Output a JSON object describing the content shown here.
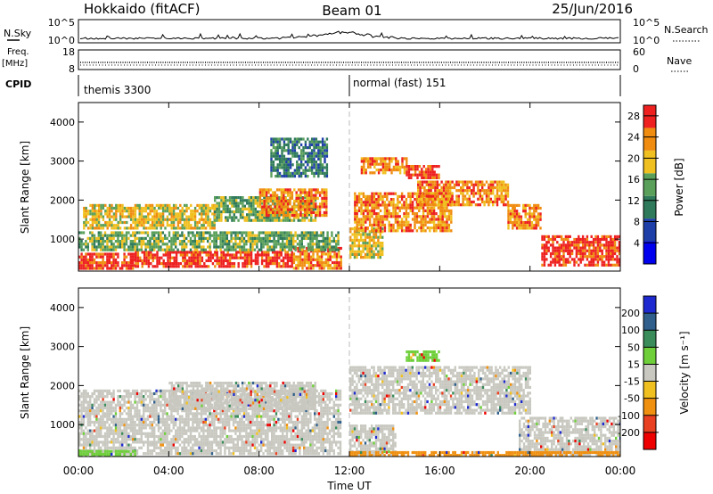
{
  "header": {
    "station": "Hokkaido (fitACF)",
    "beam": "Beam 01",
    "date": "25/Jun/2016"
  },
  "panels": {
    "nsky": {
      "label": "N.Sky",
      "ticks": [
        "10^5",
        "10^0"
      ],
      "right_label": "N.Search",
      "right_ticks": [
        "10^5",
        "10^0"
      ]
    },
    "freq": {
      "label_1": "Freq.",
      "label_2": "[MHz]",
      "ticks": [
        "18",
        "8"
      ],
      "right_label": "Nave",
      "right_ticks": [
        "60",
        "0"
      ]
    },
    "cpid": {
      "label": "CPID",
      "modes": [
        {
          "name": "themis 3300",
          "from_hour": 0
        },
        {
          "name": "normal (fast) 151",
          "from_hour": 12
        }
      ]
    }
  },
  "chart_data": [
    {
      "type": "heatmap",
      "name": "power",
      "ylabel": "Slant Range [km]",
      "xlabel": "",
      "x_unit": "hours UT",
      "xlim": [
        0,
        24
      ],
      "ylim": [
        180,
        4500
      ],
      "yticks": [
        1000,
        2000,
        3000,
        4000
      ],
      "colorbar_label": "Power [dB]",
      "colorbar_ticks": [
        4,
        8,
        12,
        16,
        20,
        24,
        28
      ],
      "colorbar_range": [
        0,
        30
      ],
      "colors": [
        "#0000ee",
        "#1f3fa8",
        "#2f7a5a",
        "#5aa05a",
        "#f0c020",
        "#f08c10",
        "#ee2020"
      ],
      "bands": [
        {
          "t0": 0.0,
          "t1": 2.5,
          "r0": 250,
          "r1": 650,
          "level": 6
        },
        {
          "t0": 2.5,
          "t1": 9.5,
          "r0": 300,
          "r1": 700,
          "level": 6
        },
        {
          "t0": 9.5,
          "t1": 11.6,
          "r0": 250,
          "r1": 800,
          "level": 5
        },
        {
          "t0": 0.0,
          "t1": 11.5,
          "r0": 700,
          "r1": 1200,
          "level": 3
        },
        {
          "t0": 0.2,
          "t1": 6.0,
          "r0": 1300,
          "r1": 1900,
          "level": 4
        },
        {
          "t0": 6.0,
          "t1": 10.5,
          "r0": 1500,
          "r1": 2100,
          "level": 3
        },
        {
          "t0": 8.0,
          "t1": 11.0,
          "r0": 1600,
          "r1": 2300,
          "level": 5
        },
        {
          "t0": 8.5,
          "t1": 11.0,
          "r0": 2600,
          "r1": 3600,
          "level": 2
        },
        {
          "t0": 12.0,
          "t1": 13.5,
          "r0": 500,
          "r1": 1300,
          "level": 4
        },
        {
          "t0": 12.2,
          "t1": 16.5,
          "r0": 1200,
          "r1": 2200,
          "level": 5
        },
        {
          "t0": 15.0,
          "t1": 19.0,
          "r0": 1900,
          "r1": 2500,
          "level": 5
        },
        {
          "t0": 12.5,
          "t1": 14.5,
          "r0": 2700,
          "r1": 3100,
          "level": 5
        },
        {
          "t0": 14.5,
          "t1": 16.0,
          "r0": 2600,
          "r1": 2900,
          "level": 6
        },
        {
          "t0": 19.0,
          "t1": 20.5,
          "r0": 1300,
          "r1": 1900,
          "level": 5
        },
        {
          "t0": 20.5,
          "t1": 24.0,
          "r0": 300,
          "r1": 1100,
          "level": 6
        }
      ]
    },
    {
      "type": "heatmap",
      "name": "velocity",
      "ylabel": "Slant Range [km]",
      "xlabel": "Time UT",
      "x_unit": "hours UT",
      "xlim": [
        0,
        24
      ],
      "ylim": [
        180,
        4500
      ],
      "yticks": [
        1000,
        2000,
        3000,
        4000
      ],
      "xticks": [
        "00:00",
        "04:00",
        "08:00",
        "12:00",
        "16:00",
        "20:00",
        "00:00"
      ],
      "colorbar_label": "Velocity [m s⁻¹]",
      "colorbar_ticks": [
        "200",
        "100",
        "50",
        "15",
        "-15",
        "-50",
        "-100",
        "-200"
      ],
      "colors": [
        "#1e2ad0",
        "#2f5f8a",
        "#3a8c5a",
        "#6ecf3a",
        "#c8c8c0",
        "#f0c020",
        "#f09010",
        "#e84020",
        "#ee0000"
      ],
      "bands": [
        {
          "t0": 0.0,
          "t1": 11.6,
          "r0": 250,
          "r1": 1900,
          "level": 4
        },
        {
          "t0": 4.0,
          "t1": 10.5,
          "r0": 1400,
          "r1": 2100,
          "level": 4
        },
        {
          "t0": 12.0,
          "t1": 20.0,
          "r0": 1300,
          "r1": 2500,
          "level": 4
        },
        {
          "t0": 19.5,
          "t1": 24.0,
          "r0": 200,
          "r1": 1200,
          "level": 4
        },
        {
          "t0": 12.0,
          "t1": 14.0,
          "r0": 200,
          "r1": 1000,
          "level": 4
        },
        {
          "t0": 14.5,
          "t1": 16.0,
          "r0": 2650,
          "r1": 2900,
          "level": 3
        },
        {
          "t0": 0.0,
          "t1": 2.5,
          "r0": 200,
          "r1": 350,
          "level": 3
        },
        {
          "t0": 12.0,
          "t1": 24.0,
          "r0": 200,
          "r1": 320,
          "level": 6
        }
      ]
    }
  ]
}
